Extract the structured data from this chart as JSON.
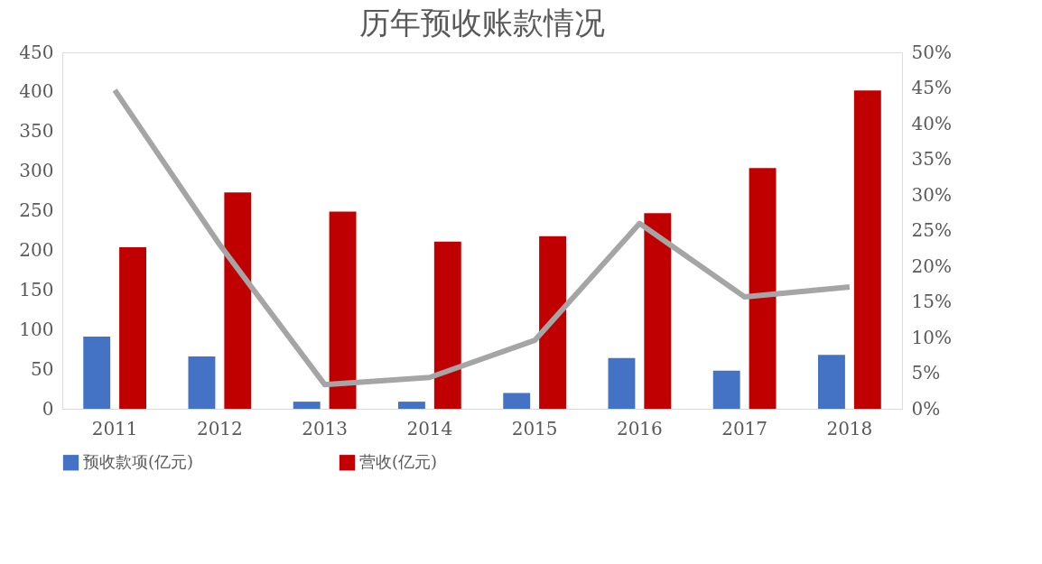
{
  "chart_data": {
    "type": "bar",
    "title": "历年预收账款情况",
    "categories": [
      "2011",
      "2012",
      "2013",
      "2014",
      "2015",
      "2016",
      "2017",
      "2018"
    ],
    "series": [
      {
        "name": "预收款项(亿元)",
        "color": "#4472c4",
        "values": [
          91,
          66,
          9,
          9,
          20,
          64,
          48,
          68
        ]
      },
      {
        "name": "营收(亿元)",
        "color": "#c00000",
        "values": [
          204,
          273,
          249,
          211,
          218,
          247,
          304,
          402
        ]
      },
      {
        "type": "line",
        "axis": "y2",
        "color": "#a5a5a5",
        "values": [
          44.7,
          23,
          3.4,
          4.4,
          9.6,
          26,
          15.7,
          17.1
        ]
      }
    ],
    "ylim": [
      0,
      450
    ],
    "yticks": [
      0,
      50,
      100,
      150,
      200,
      250,
      300,
      350,
      400,
      450
    ],
    "y2lim": [
      0,
      50
    ],
    "y2ticks": [
      {
        "value": 0,
        "label": "0%"
      },
      {
        "value": 5,
        "label": "5%"
      },
      {
        "value": 10,
        "label": "10%"
      },
      {
        "value": 15,
        "label": "15%"
      },
      {
        "value": 20,
        "label": "20%"
      },
      {
        "value": 25,
        "label": "25%"
      },
      {
        "value": 30,
        "label": "30%"
      },
      {
        "value": 35,
        "label": "35%"
      },
      {
        "value": 40,
        "label": "40%"
      },
      {
        "value": 45,
        "label": "45%"
      },
      {
        "value": 50,
        "label": "50%"
      }
    ],
    "grid": false,
    "legend": "bottom"
  }
}
